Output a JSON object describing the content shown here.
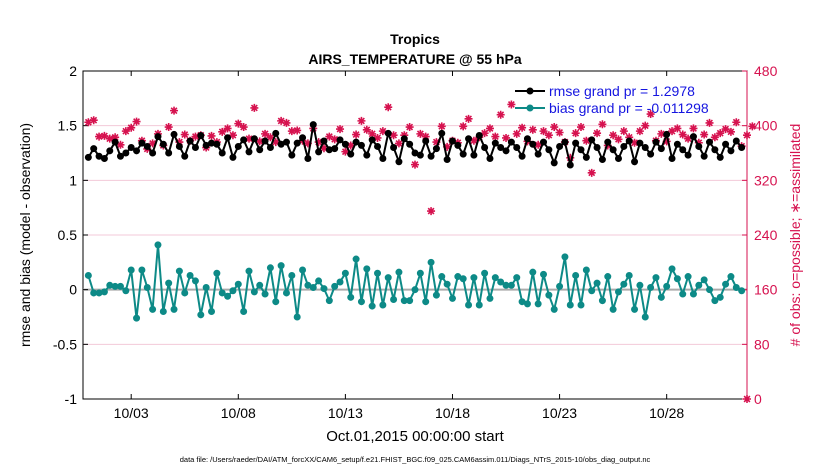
{
  "chart_data": {
    "type": "line",
    "title": "Tropics",
    "subtitle": "AIRS_TEMPERATURE @ 55 hPa",
    "xlabel": "Oct.01,2015 00:00:00 start",
    "ylabel_left": "rmse and bias (model - observation)",
    "ylabel_right": "# of obs: o=possible; ∗=assimilated",
    "footer": "data file: /Users/raeder/DAI/ATM_forcXX/CAM6_setup/f.e21.FHIST_BGC.f09_025.CAM6assim.011/Diags_NTrS_2015-10/obs_diag_output.nc",
    "x_range": [
      0.75,
      31.75
    ],
    "ylim_left": [
      -1,
      2
    ],
    "ylim_right": [
      0,
      480
    ],
    "yticks_left": [
      "-1",
      "-0.5",
      "0",
      "0.5",
      "1",
      "1.5",
      "2"
    ],
    "yticks_right": [
      "0",
      "80",
      "160",
      "240",
      "320",
      "400",
      "480"
    ],
    "xticks": [
      {
        "x": 3,
        "label": "10/03"
      },
      {
        "x": 8,
        "label": "10/08"
      },
      {
        "x": 13,
        "label": "10/13"
      },
      {
        "x": 18,
        "label": "10/18"
      },
      {
        "x": 23,
        "label": "10/23"
      },
      {
        "x": 28,
        "label": "10/28"
      }
    ],
    "x_start": 1,
    "x_step": 0.25,
    "colors": {
      "rmse": "#000000",
      "bias": "#0d8a87",
      "obs": "#d6124f",
      "zero": "#aaaaaa",
      "grid": "#f3c9d8"
    },
    "series": [
      {
        "name": "rmse grand pr = 1.2978",
        "marker": "circle",
        "axis": "left",
        "values": [
          1.21,
          1.29,
          1.22,
          1.2,
          1.27,
          1.35,
          1.22,
          1.25,
          1.3,
          1.27,
          1.34,
          1.31,
          1.25,
          1.4,
          1.33,
          1.25,
          1.42,
          1.31,
          1.22,
          1.36,
          1.3,
          1.41,
          1.32,
          1.34,
          1.33,
          1.25,
          1.39,
          1.21,
          1.31,
          1.37,
          1.26,
          1.38,
          1.28,
          1.36,
          1.3,
          1.43,
          1.33,
          1.35,
          1.23,
          1.34,
          1.39,
          1.2,
          1.51,
          1.26,
          1.36,
          1.28,
          1.29,
          1.37,
          1.33,
          1.24,
          1.35,
          1.32,
          1.23,
          1.37,
          1.31,
          1.2,
          1.43,
          1.3,
          1.17,
          1.38,
          1.33,
          1.25,
          1.23,
          1.36,
          1.22,
          1.29,
          1.43,
          1.19,
          1.36,
          1.32,
          1.24,
          1.38,
          1.23,
          1.41,
          1.3,
          1.2,
          1.34,
          1.3,
          1.27,
          1.35,
          1.3,
          1.22,
          1.38,
          1.33,
          1.24,
          1.35,
          1.28,
          1.16,
          1.31,
          1.35,
          1.14,
          1.34,
          1.28,
          1.21,
          1.37,
          1.3,
          1.19,
          1.35,
          1.28,
          1.2,
          1.31,
          1.36,
          1.17,
          1.34,
          1.3,
          1.24,
          1.35,
          1.29,
          1.42,
          1.2,
          1.33,
          1.28,
          1.23,
          1.4,
          1.31,
          1.22,
          1.35,
          1.28,
          1.21,
          1.33,
          1.27,
          1.36,
          1.3
        ]
      },
      {
        "name": "bias grand pr = -0.011298",
        "marker": "circle",
        "axis": "left",
        "values": [
          0.13,
          -0.03,
          -0.03,
          -0.02,
          0.04,
          0.03,
          0.03,
          -0.01,
          0.18,
          -0.26,
          0.18,
          0.02,
          -0.18,
          0.41,
          -0.2,
          0.06,
          -0.18,
          0.17,
          -0.03,
          0.13,
          0.08,
          -0.23,
          0.02,
          -0.2,
          0.15,
          -0.03,
          -0.06,
          -0.01,
          0.05,
          -0.2,
          0.17,
          -0.02,
          0.04,
          -0.04,
          0.2,
          -0.11,
          0.22,
          -0.03,
          0.13,
          -0.25,
          0.18,
          0.04,
          0.02,
          0.08,
          0.01,
          -0.1,
          0.03,
          0.07,
          0.15,
          -0.07,
          0.28,
          -0.11,
          0.19,
          -0.15,
          0.15,
          -0.14,
          0.11,
          -0.09,
          0.16,
          -0.1,
          -0.1,
          0.0,
          0.15,
          -0.11,
          0.25,
          -0.05,
          0.12,
          0.05,
          -0.08,
          0.12,
          0.1,
          -0.14,
          0.11,
          -0.14,
          0.15,
          -0.08,
          0.11,
          0.07,
          0.04,
          0.04,
          0.11,
          -0.11,
          -0.13,
          0.16,
          -0.13,
          0.14,
          -0.05,
          -0.18,
          0.03,
          0.3,
          -0.14,
          0.13,
          -0.14,
          0.18,
          -0.01,
          0.06,
          -0.1,
          0.12,
          -0.18,
          -0.02,
          0.05,
          0.13,
          -0.18,
          0.04,
          -0.25,
          0.02,
          0.11,
          -0.07,
          0.03,
          0.19,
          0.1,
          -0.04,
          0.12,
          -0.04,
          0.04,
          0.09,
          0.0,
          -0.1,
          -0.07,
          0.05,
          0.12,
          0.02,
          -0.01
        ]
      },
      {
        "name": "assimilated",
        "marker": "asterisk",
        "axis": "right",
        "values": [
          405,
          408,
          384,
          385,
          381,
          383,
          372,
          392,
          397,
          406,
          378,
          366,
          374,
          388,
          371,
          398,
          422,
          376,
          387,
          378,
          384,
          386,
          368,
          385,
          376,
          391,
          396,
          386,
          403,
          398,
          381,
          426,
          377,
          388,
          383,
          376,
          407,
          404,
          392,
          393,
          378,
          374,
          396,
          376,
          367,
          384,
          380,
          395,
          362,
          371,
          387,
          407,
          394,
          388,
          382,
          392,
          427,
          386,
          374,
          386,
          398,
          343,
          388,
          384,
          275,
          376,
          399,
          369,
          378,
          375,
          399,
          410,
          378,
          383,
          389,
          396,
          384,
          416,
          382,
          431,
          388,
          397,
          377,
          394,
          372,
          392,
          386,
          398,
          390,
          376,
          353,
          389,
          398,
          378,
          331,
          389,
          402,
          371,
          386,
          380,
          392,
          383,
          375,
          392,
          400,
          417,
          378,
          388,
          377,
          392,
          396,
          387,
          381,
          396,
          375,
          387,
          404,
          383,
          389,
          395,
          391,
          405,
          370,
          386,
          399
        ]
      }
    ]
  }
}
